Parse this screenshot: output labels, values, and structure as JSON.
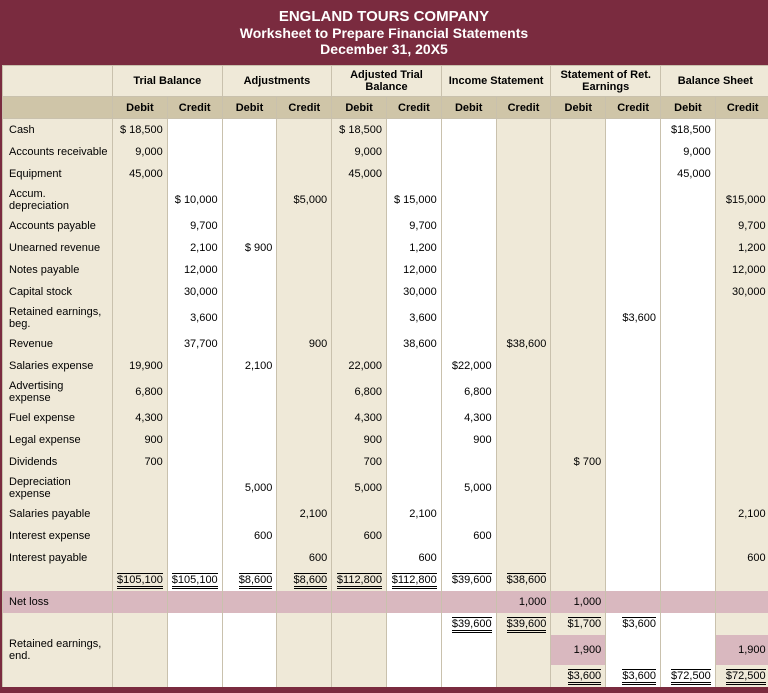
{
  "header": {
    "l1": "ENGLAND TOURS COMPANY",
    "l2": "Worksheet to Prepare Financial Statements",
    "l3": "December 31, 20X5"
  },
  "groups": [
    "Trial Balance",
    "Adjustments",
    "Adjusted Trial Balance",
    "Income Statement",
    "Statement of Ret. Earnings",
    "Balance Sheet"
  ],
  "dc": {
    "d": "Debit",
    "c": "Credit"
  },
  "rows": [
    {
      "a": "Cash",
      "c": [
        "$ 18,500",
        "",
        "",
        "",
        "$ 18,500",
        "",
        "",
        "",
        "",
        "",
        "$18,500",
        ""
      ]
    },
    {
      "a": "Accounts receivable",
      "c": [
        "9,000",
        "",
        "",
        "",
        "9,000",
        "",
        "",
        "",
        "",
        "",
        "9,000",
        ""
      ]
    },
    {
      "a": "Equipment",
      "c": [
        "45,000",
        "",
        "",
        "",
        "45,000",
        "",
        "",
        "",
        "",
        "",
        "45,000",
        ""
      ]
    },
    {
      "a": "Accum. depreciation",
      "c": [
        "",
        "$ 10,000",
        "",
        "$5,000",
        "",
        "$ 15,000",
        "",
        "",
        "",
        "",
        "",
        "$15,000"
      ]
    },
    {
      "a": "Accounts payable",
      "c": [
        "",
        "9,700",
        "",
        "",
        "",
        "9,700",
        "",
        "",
        "",
        "",
        "",
        "9,700"
      ]
    },
    {
      "a": "Unearned revenue",
      "c": [
        "",
        "2,100",
        "$ 900",
        "",
        "",
        "1,200",
        "",
        "",
        "",
        "",
        "",
        "1,200"
      ]
    },
    {
      "a": "Notes payable",
      "c": [
        "",
        "12,000",
        "",
        "",
        "",
        "12,000",
        "",
        "",
        "",
        "",
        "",
        "12,000"
      ]
    },
    {
      "a": "Capital stock",
      "c": [
        "",
        "30,000",
        "",
        "",
        "",
        "30,000",
        "",
        "",
        "",
        "",
        "",
        "30,000"
      ]
    },
    {
      "a": "Retained earnings, beg.",
      "c": [
        "",
        "3,600",
        "",
        "",
        "",
        "3,600",
        "",
        "",
        "",
        "$3,600",
        "",
        ""
      ]
    },
    {
      "a": "Revenue",
      "c": [
        "",
        "37,700",
        "",
        "900",
        "",
        "38,600",
        "",
        "$38,600",
        "",
        "",
        "",
        ""
      ]
    },
    {
      "a": "Salaries expense",
      "c": [
        "19,900",
        "",
        "2,100",
        "",
        "22,000",
        "",
        "$22,000",
        "",
        "",
        "",
        "",
        ""
      ]
    },
    {
      "a": "Advertising expense",
      "c": [
        "6,800",
        "",
        "",
        "",
        "6,800",
        "",
        "6,800",
        "",
        "",
        "",
        "",
        ""
      ]
    },
    {
      "a": "Fuel expense",
      "c": [
        "4,300",
        "",
        "",
        "",
        "4,300",
        "",
        "4,300",
        "",
        "",
        "",
        "",
        ""
      ]
    },
    {
      "a": "Legal expense",
      "c": [
        "900",
        "",
        "",
        "",
        "900",
        "",
        "900",
        "",
        "",
        "",
        "",
        ""
      ]
    },
    {
      "a": "Dividends",
      "c": [
        "700",
        "",
        "",
        "",
        "700",
        "",
        "",
        "",
        "$  700",
        "",
        "",
        ""
      ]
    },
    {
      "a": "Depreciation expense",
      "c": [
        "",
        "",
        "5,000",
        "",
        "5,000",
        "",
        "5,000",
        "",
        "",
        "",
        "",
        ""
      ]
    },
    {
      "a": "Salaries payable",
      "c": [
        "",
        "",
        "",
        "2,100",
        "",
        "2,100",
        "",
        "",
        "",
        "",
        "",
        "2,100"
      ]
    },
    {
      "a": "Interest expense",
      "c": [
        "",
        "",
        "600",
        "",
        "600",
        "",
        "600",
        "",
        "",
        "",
        "",
        ""
      ]
    },
    {
      "a": "Interest payable",
      "c": [
        "",
        "",
        "",
        "600",
        "",
        "600",
        "",
        "",
        "",
        "",
        "",
        "600"
      ]
    }
  ],
  "tot1": [
    "$105,100",
    "$105,100",
    "$8,600",
    "$8,600",
    "$112,800",
    "$112,800",
    "$39,600",
    "$38,600",
    "",
    "",
    "",
    ""
  ],
  "netloss": {
    "a": "Net loss",
    "c": [
      "",
      "",
      "",
      "",
      "",
      "",
      "",
      "1,000",
      "1,000",
      "",
      "",
      ""
    ]
  },
  "tot2": [
    "",
    "",
    "",
    "",
    "",
    "",
    "$39,600",
    "$39,600",
    "$1,700",
    "$3,600",
    "",
    ""
  ],
  "retend": {
    "a": "Retained earnings, end.",
    "c": [
      "",
      "",
      "",
      "",
      "",
      "",
      "",
      "",
      "1,900",
      "",
      "",
      "1,900"
    ]
  },
  "tot3": [
    "",
    "",
    "",
    "",
    "",
    "",
    "",
    "",
    "$3,600",
    "$3,600",
    "$72,500",
    "$72,500"
  ]
}
